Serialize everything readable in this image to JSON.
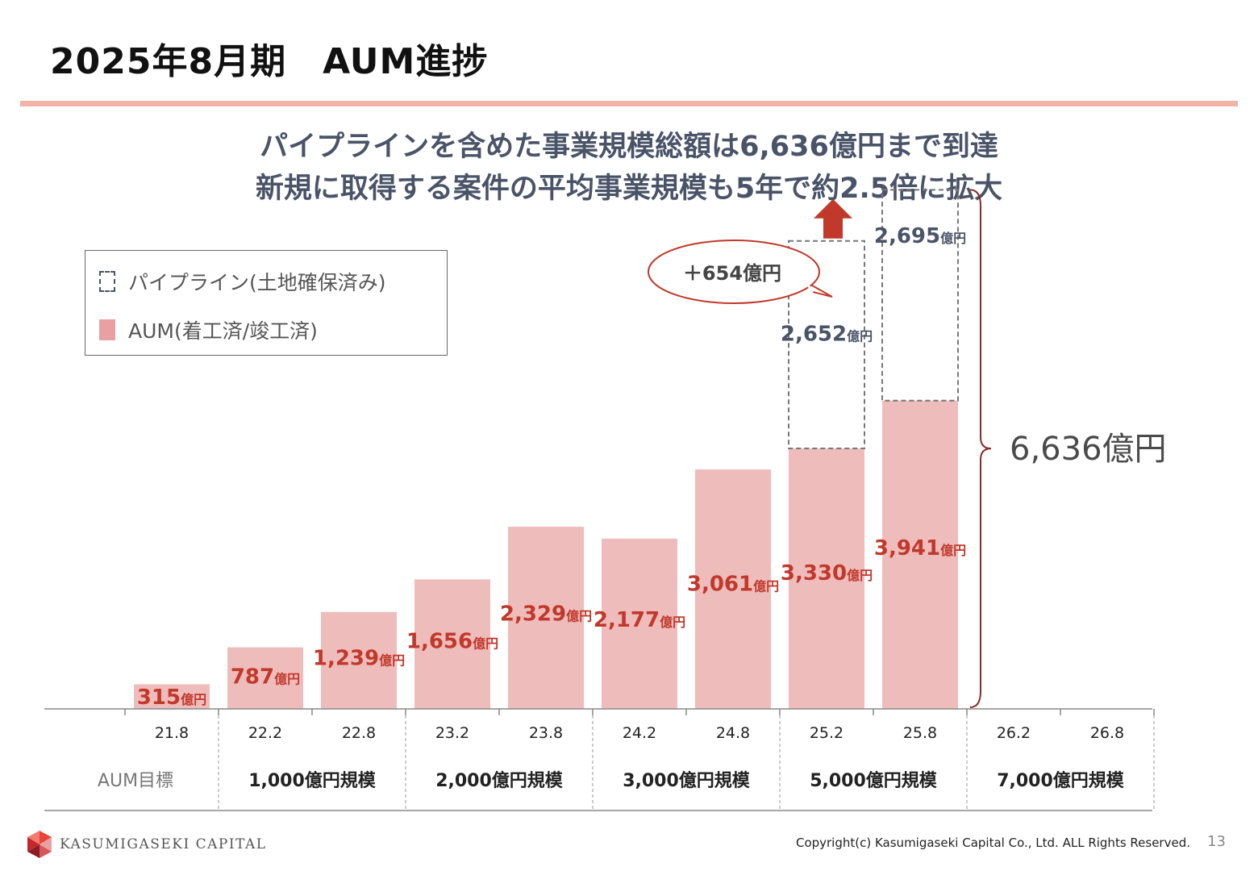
{
  "title": "2025年8月期　AUM進捗",
  "headline": {
    "line1": "パイプラインを含めた事業規模総額は6,636億円まで到達",
    "line2": "新規に取得する案件の平均事業規模も5年で約2.5倍に拡大"
  },
  "legend": {
    "pipeline": "パイプライン(土地確保済み)",
    "aum": "AUM(着工済/竣工済)"
  },
  "colors": {
    "aum_fill": "#efbcbc",
    "value_text": "#c0392b",
    "pipeline_text": "#4a5468",
    "arrow": "#c0392b",
    "brace": "#8b2a2a"
  },
  "chart_data": {
    "type": "bar",
    "unit": "億円",
    "categories": [
      "21.8",
      "22.2",
      "22.8",
      "23.2",
      "23.8",
      "24.2",
      "24.8",
      "25.2",
      "25.8",
      "26.2",
      "26.8"
    ],
    "series": [
      {
        "name": "AUM(着工済/竣工済)",
        "values": [
          315,
          787,
          1239,
          1656,
          2329,
          2177,
          3061,
          3330,
          3941,
          null,
          null
        ]
      },
      {
        "name": "パイプライン(土地確保済み)",
        "values": [
          null,
          null,
          null,
          null,
          null,
          null,
          null,
          2652,
          2695,
          null,
          null
        ]
      }
    ],
    "aum_labels": [
      "315",
      "787",
      "1,239",
      "1,656",
      "2,329",
      "2,177",
      "3,061",
      "3,330",
      "3,941",
      "",
      ""
    ],
    "pipeline_labels": [
      "",
      "",
      "",
      "",
      "",
      "",
      "",
      "2,652",
      "2,695",
      "",
      ""
    ],
    "annotations": {
      "callout": "＋654億円",
      "total": "6,636億円"
    },
    "target_row": {
      "label": "AUM目標",
      "groups": [
        {
          "label": "1,000億円規模",
          "from": 1,
          "to": 2
        },
        {
          "label": "2,000億円規模",
          "from": 3,
          "to": 4
        },
        {
          "label": "3,000億円規模",
          "from": 5,
          "to": 6
        },
        {
          "label": "5,000億円規模",
          "from": 7,
          "to": 8
        },
        {
          "label": "7,000億円規模",
          "from": 9,
          "to": 10
        }
      ]
    }
  },
  "footer": {
    "brand": "KASUMIGASEKI CAPITAL",
    "copyright": "Copyright(c) Kasumigaseki Capital Co., Ltd. ALL Rights Reserved.",
    "page": "13"
  }
}
